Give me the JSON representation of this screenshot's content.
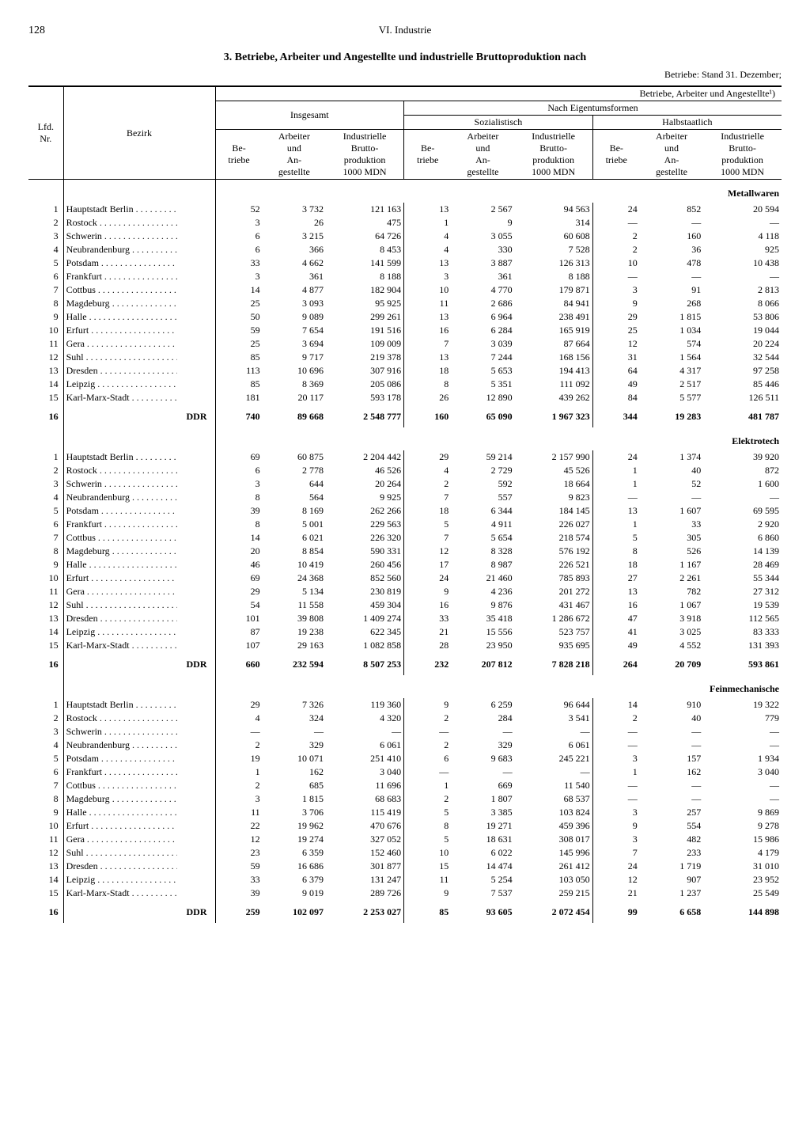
{
  "page_number": "128",
  "chapter": "VI. Industrie",
  "title": "3. Betriebe, Arbeiter und Angestellte und industrielle Bruttoproduktion nach",
  "subtitle": "Betriebe: Stand 31. Dezember;",
  "head": {
    "super": "Betriebe, Arbeiter und Angestellte¹)",
    "insgesamt": "Insgesamt",
    "eigentum": "Nach Eigentumsformen",
    "sozialistisch": "Sozialistisch",
    "halbstaatlich": "Halbstaatlich",
    "lfd": "Lfd.\nNr.",
    "bezirk": "Bezirk",
    "betriebe": "Be-\ntriebe",
    "arbeiter": "Arbeiter\nund\nAn-\ngestellte",
    "brutto": "Industrielle\nBrutto-\nproduktion\n1000 MDN"
  },
  "sections": [
    {
      "label": "Metallwaren",
      "rows": [
        {
          "n": "1",
          "b": "Hauptstadt Berlin",
          "c": [
            "52",
            "3 732",
            "121 163",
            "13",
            "2 567",
            "94 563",
            "24",
            "852",
            "20 594"
          ]
        },
        {
          "n": "2",
          "b": "Rostock",
          "c": [
            "3",
            "26",
            "475",
            "1",
            "9",
            "314",
            "—",
            "—",
            "—"
          ]
        },
        {
          "n": "3",
          "b": "Schwerin",
          "c": [
            "6",
            "3 215",
            "64 726",
            "4",
            "3 055",
            "60 608",
            "2",
            "160",
            "4 118"
          ]
        },
        {
          "n": "4",
          "b": "Neubrandenburg",
          "c": [
            "6",
            "366",
            "8 453",
            "4",
            "330",
            "7 528",
            "2",
            "36",
            "925"
          ]
        },
        {
          "n": "5",
          "b": "Potsdam",
          "c": [
            "33",
            "4 662",
            "141 599",
            "13",
            "3 887",
            "126 313",
            "10",
            "478",
            "10 438"
          ]
        },
        {
          "n": "6",
          "b": "Frankfurt",
          "c": [
            "3",
            "361",
            "8 188",
            "3",
            "361",
            "8 188",
            "—",
            "—",
            "—"
          ]
        },
        {
          "n": "7",
          "b": "Cottbus",
          "c": [
            "14",
            "4 877",
            "182 904",
            "10",
            "4 770",
            "179 871",
            "3",
            "91",
            "2 813"
          ]
        },
        {
          "n": "8",
          "b": "Magdeburg",
          "c": [
            "25",
            "3 093",
            "95 925",
            "11",
            "2 686",
            "84 941",
            "9",
            "268",
            "8 066"
          ]
        },
        {
          "n": "9",
          "b": "Halle",
          "c": [
            "50",
            "9 089",
            "299 261",
            "13",
            "6 964",
            "238 491",
            "29",
            "1 815",
            "53 806"
          ]
        },
        {
          "n": "10",
          "b": "Erfurt",
          "c": [
            "59",
            "7 654",
            "191 516",
            "16",
            "6 284",
            "165 919",
            "25",
            "1 034",
            "19 044"
          ]
        },
        {
          "n": "11",
          "b": "Gera",
          "c": [
            "25",
            "3 694",
            "109 009",
            "7",
            "3 039",
            "87 664",
            "12",
            "574",
            "20 224"
          ]
        },
        {
          "n": "12",
          "b": "Suhl",
          "c": [
            "85",
            "9 717",
            "219 378",
            "13",
            "7 244",
            "168 156",
            "31",
            "1 564",
            "32 544"
          ]
        },
        {
          "n": "13",
          "b": "Dresden",
          "c": [
            "113",
            "10 696",
            "307 916",
            "18",
            "5 653",
            "194 413",
            "64",
            "4 317",
            "97 258"
          ]
        },
        {
          "n": "14",
          "b": "Leipzig",
          "c": [
            "85",
            "8 369",
            "205 086",
            "8",
            "5 351",
            "111 092",
            "49",
            "2 517",
            "85 446"
          ]
        },
        {
          "n": "15",
          "b": "Karl-Marx-Stadt",
          "c": [
            "181",
            "20 117",
            "593 178",
            "26",
            "12 890",
            "439 262",
            "84",
            "5 577",
            "126 511"
          ]
        }
      ],
      "total": {
        "n": "16",
        "b": "DDR",
        "c": [
          "740",
          "89 668",
          "2 548 777",
          "160",
          "65 090",
          "1 967 323",
          "344",
          "19 283",
          "481 787"
        ]
      }
    },
    {
      "label": "Elektrotech",
      "rows": [
        {
          "n": "1",
          "b": "Hauptstadt Berlin",
          "c": [
            "69",
            "60 875",
            "2 204 442",
            "29",
            "59 214",
            "2 157 990",
            "24",
            "1 374",
            "39 920"
          ]
        },
        {
          "n": "2",
          "b": "Rostock",
          "c": [
            "6",
            "2 778",
            "46 526",
            "4",
            "2 729",
            "45 526",
            "1",
            "40",
            "872"
          ]
        },
        {
          "n": "3",
          "b": "Schwerin",
          "c": [
            "3",
            "644",
            "20 264",
            "2",
            "592",
            "18 664",
            "1",
            "52",
            "1 600"
          ]
        },
        {
          "n": "4",
          "b": "Neubrandenburg",
          "c": [
            "8",
            "564",
            "9 925",
            "7",
            "557",
            "9 823",
            "—",
            "—",
            "—"
          ]
        },
        {
          "n": "5",
          "b": "Potsdam",
          "c": [
            "39",
            "8 169",
            "262 266",
            "18",
            "6 344",
            "184 145",
            "13",
            "1 607",
            "69 595"
          ]
        },
        {
          "n": "6",
          "b": "Frankfurt",
          "c": [
            "8",
            "5 001",
            "229 563",
            "5",
            "4 911",
            "226 027",
            "1",
            "33",
            "2 920"
          ]
        },
        {
          "n": "7",
          "b": "Cottbus",
          "c": [
            "14",
            "6 021",
            "226 320",
            "7",
            "5 654",
            "218 574",
            "5",
            "305",
            "6 860"
          ]
        },
        {
          "n": "8",
          "b": "Magdeburg",
          "c": [
            "20",
            "8 854",
            "590 331",
            "12",
            "8 328",
            "576 192",
            "8",
            "526",
            "14 139"
          ]
        },
        {
          "n": "9",
          "b": "Halle",
          "c": [
            "46",
            "10 419",
            "260 456",
            "17",
            "8 987",
            "226 521",
            "18",
            "1 167",
            "28 469"
          ]
        },
        {
          "n": "10",
          "b": "Erfurt",
          "c": [
            "69",
            "24 368",
            "852 560",
            "24",
            "21 460",
            "785 893",
            "27",
            "2 261",
            "55 344"
          ]
        },
        {
          "n": "11",
          "b": "Gera",
          "c": [
            "29",
            "5 134",
            "230 819",
            "9",
            "4 236",
            "201 272",
            "13",
            "782",
            "27 312"
          ]
        },
        {
          "n": "12",
          "b": "Suhl",
          "c": [
            "54",
            "11 558",
            "459 304",
            "16",
            "9 876",
            "431 467",
            "16",
            "1 067",
            "19 539"
          ]
        },
        {
          "n": "13",
          "b": "Dresden",
          "c": [
            "101",
            "39 808",
            "1 409 274",
            "33",
            "35 418",
            "1 286 672",
            "47",
            "3 918",
            "112 565"
          ]
        },
        {
          "n": "14",
          "b": "Leipzig",
          "c": [
            "87",
            "19 238",
            "622 345",
            "21",
            "15 556",
            "523 757",
            "41",
            "3 025",
            "83 333"
          ]
        },
        {
          "n": "15",
          "b": "Karl-Marx-Stadt",
          "c": [
            "107",
            "29 163",
            "1 082 858",
            "28",
            "23 950",
            "935 695",
            "49",
            "4 552",
            "131 393"
          ]
        }
      ],
      "total": {
        "n": "16",
        "b": "DDR",
        "c": [
          "660",
          "232 594",
          "8 507 253",
          "232",
          "207 812",
          "7 828 218",
          "264",
          "20 709",
          "593 861"
        ]
      }
    },
    {
      "label": "Feinmechanische",
      "rows": [
        {
          "n": "1",
          "b": "Hauptstadt Berlin",
          "c": [
            "29",
            "7 326",
            "119 360",
            "9",
            "6 259",
            "96 644",
            "14",
            "910",
            "19 322"
          ]
        },
        {
          "n": "2",
          "b": "Rostock",
          "c": [
            "4",
            "324",
            "4 320",
            "2",
            "284",
            "3 541",
            "2",
            "40",
            "779"
          ]
        },
        {
          "n": "3",
          "b": "Schwerin",
          "c": [
            "—",
            "—",
            "—",
            "—",
            "—",
            "—",
            "—",
            "—",
            "—"
          ]
        },
        {
          "n": "4",
          "b": "Neubrandenburg",
          "c": [
            "2",
            "329",
            "6 061",
            "2",
            "329",
            "6 061",
            "—",
            "—",
            "—"
          ]
        },
        {
          "n": "5",
          "b": "Potsdam",
          "c": [
            "19",
            "10 071",
            "251 410",
            "6",
            "9 683",
            "245 221",
            "3",
            "157",
            "1 934"
          ]
        },
        {
          "n": "6",
          "b": "Frankfurt",
          "c": [
            "1",
            "162",
            "3 040",
            "—",
            "—",
            "—",
            "1",
            "162",
            "3 040"
          ]
        },
        {
          "n": "7",
          "b": "Cottbus",
          "c": [
            "2",
            "685",
            "11 696",
            "1",
            "669",
            "11 540",
            "—",
            "—",
            "—"
          ]
        },
        {
          "n": "8",
          "b": "Magdeburg",
          "c": [
            "3",
            "1 815",
            "68 683",
            "2",
            "1 807",
            "68 537",
            "—",
            "—",
            "—"
          ]
        },
        {
          "n": "9",
          "b": "Halle",
          "c": [
            "11",
            "3 706",
            "115 419",
            "5",
            "3 385",
            "103 824",
            "3",
            "257",
            "9 869"
          ]
        },
        {
          "n": "10",
          "b": "Erfurt",
          "c": [
            "22",
            "19 962",
            "470 676",
            "8",
            "19 271",
            "459 396",
            "9",
            "554",
            "9 278"
          ]
        },
        {
          "n": "11",
          "b": "Gera",
          "c": [
            "12",
            "19 274",
            "327 052",
            "5",
            "18 631",
            "308 017",
            "3",
            "482",
            "15 986"
          ]
        },
        {
          "n": "12",
          "b": "Suhl",
          "c": [
            "23",
            "6 359",
            "152 460",
            "10",
            "6 022",
            "145 996",
            "7",
            "233",
            "4 179"
          ]
        },
        {
          "n": "13",
          "b": "Dresden",
          "c": [
            "59",
            "16 686",
            "301 877",
            "15",
            "14 474",
            "261 412",
            "24",
            "1 719",
            "31 010"
          ]
        },
        {
          "n": "14",
          "b": "Leipzig",
          "c": [
            "33",
            "6 379",
            "131 247",
            "11",
            "5 254",
            "103 050",
            "12",
            "907",
            "23 952"
          ]
        },
        {
          "n": "15",
          "b": "Karl-Marx-Stadt",
          "c": [
            "39",
            "9 019",
            "289 726",
            "9",
            "7 537",
            "259 215",
            "21",
            "1 237",
            "25 549"
          ]
        }
      ],
      "total": {
        "n": "16",
        "b": "DDR",
        "c": [
          "259",
          "102 097",
          "2 253 027",
          "85",
          "93 605",
          "2 072 454",
          "99",
          "6 658",
          "144 898"
        ]
      }
    }
  ]
}
